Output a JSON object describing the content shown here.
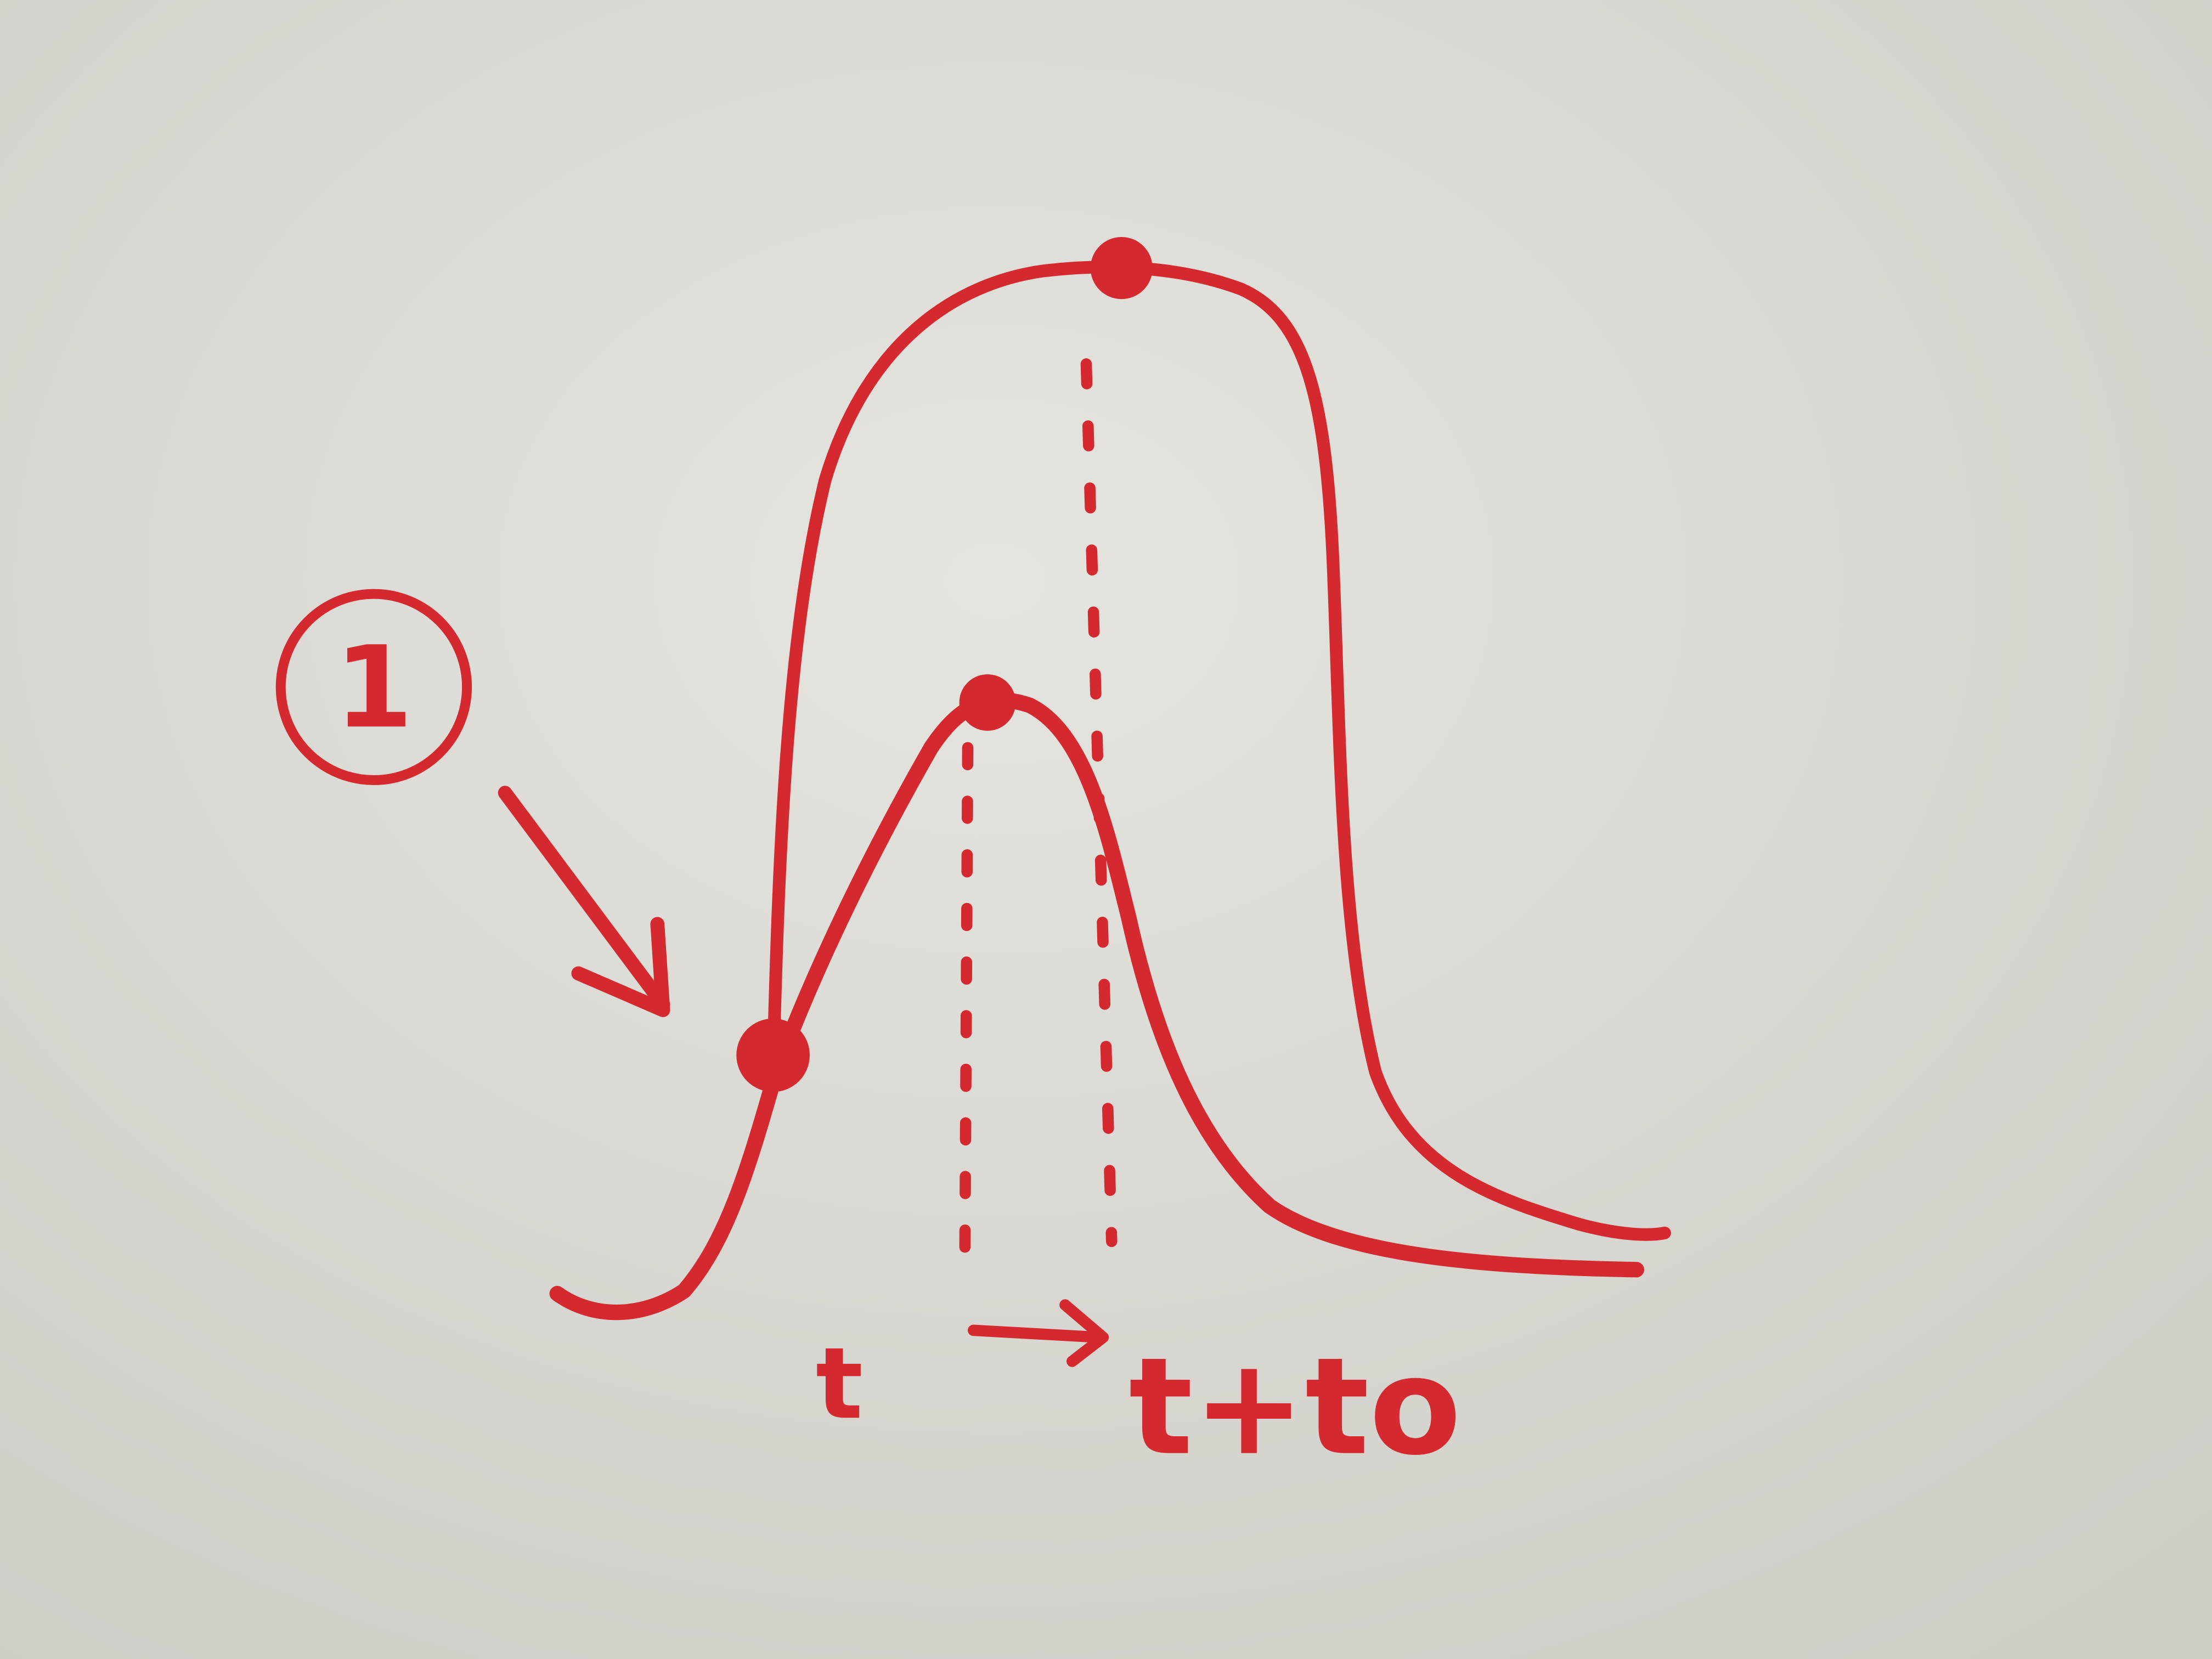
{
  "annotations": {
    "marker": "1",
    "start": "t",
    "end": "t+to"
  }
}
